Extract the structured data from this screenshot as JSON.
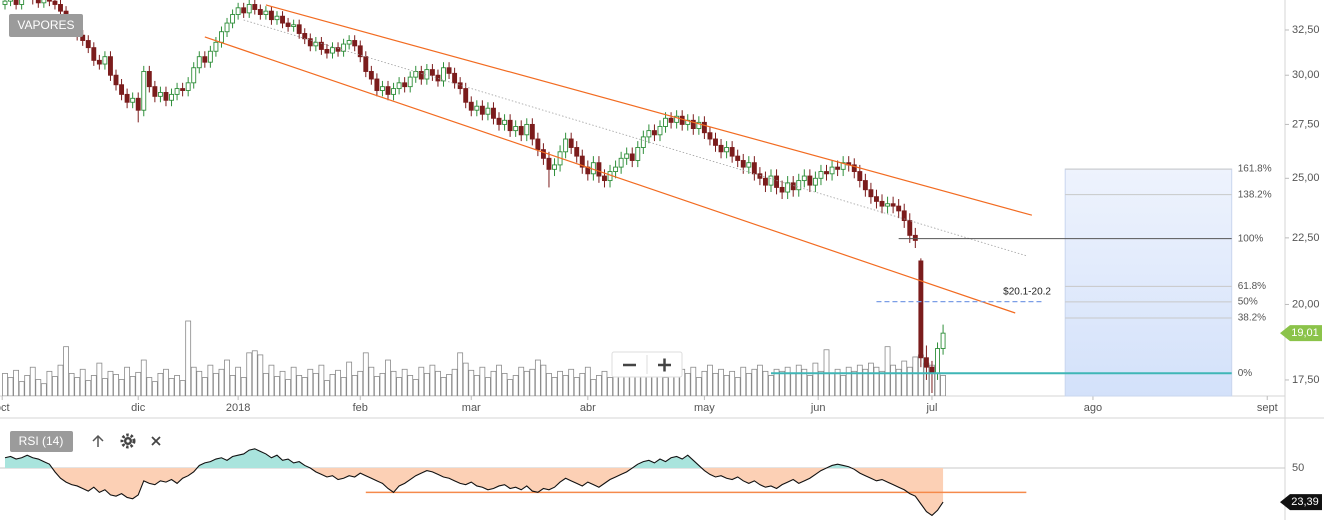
{
  "chart_data": [
    {
      "type": "candlestick",
      "title": "VAPORES",
      "scale": "log",
      "open": [
        34.0,
        34.2,
        34.5,
        34.0,
        34.6,
        34.8,
        34.3,
        34.1,
        34.5,
        34.2,
        34.0,
        33.6,
        33.0,
        32.8,
        32.2,
        31.9,
        31.5,
        30.8,
        30.6,
        31.0,
        30.0,
        29.5,
        29.0,
        28.6,
        28.8,
        28.2,
        30.2,
        29.4,
        28.9,
        29.1,
        28.7,
        29.0,
        29.3,
        29.2,
        29.6,
        30.4,
        31.0,
        30.7,
        31.3,
        31.8,
        32.4,
        32.9,
        33.4,
        33.8,
        33.5,
        34.0,
        33.7,
        33.4,
        33.6,
        33.1,
        33.3,
        32.9,
        32.7,
        32.8,
        32.3,
        32.0,
        31.6,
        31.8,
        31.4,
        31.2,
        31.5,
        31.3,
        31.7,
        31.9,
        31.6,
        31.0,
        30.2,
        29.8,
        29.2,
        29.4,
        29.0,
        29.3,
        29.6,
        29.4,
        29.9,
        30.2,
        29.8,
        30.3,
        30.0,
        29.7,
        30.4,
        30.1,
        29.6,
        29.3,
        28.6,
        28.2,
        28.4,
        28.0,
        28.3,
        27.8,
        27.5,
        27.7,
        27.2,
        27.4,
        27.0,
        27.5,
        26.8,
        26.3,
        25.9,
        25.4,
        25.6,
        26.2,
        26.8,
        26.4,
        26.0,
        25.5,
        25.2,
        25.7,
        25.1,
        24.9,
        25.3,
        25.5,
        25.9,
        26.1,
        25.8,
        26.4,
        26.9,
        27.2,
        27.0,
        27.4,
        27.8,
        27.6,
        27.9,
        27.5,
        27.7,
        27.3,
        27.6,
        27.1,
        26.8,
        26.5,
        26.2,
        26.4,
        26.0,
        25.8,
        25.5,
        25.7,
        25.2,
        25.0,
        24.7,
        25.1,
        24.6,
        24.4,
        24.8,
        24.5,
        24.9,
        25.1,
        24.7,
        25.0,
        25.3,
        25.2,
        25.5,
        25.4,
        25.7,
        25.6,
        25.3,
        24.9,
        24.5,
        24.2,
        24.0,
        23.8,
        23.9,
        23.8,
        23.6,
        23.2,
        22.6,
        21.6,
        18.2,
        17.9,
        17.7,
        18.5
      ],
      "high": [
        34.5,
        34.8,
        34.8,
        34.9,
        35.1,
        35.1,
        34.6,
        34.8,
        34.8,
        34.5,
        34.3,
        33.9,
        33.3,
        33.1,
        32.5,
        32.2,
        31.8,
        31.1,
        31.3,
        31.3,
        30.3,
        29.8,
        29.3,
        29.1,
        29.1,
        30.5,
        30.5,
        29.7,
        29.4,
        29.4,
        29.3,
        29.6,
        29.6,
        29.9,
        30.7,
        31.3,
        31.3,
        31.6,
        32.1,
        32.7,
        33.2,
        33.7,
        34.1,
        34.1,
        34.3,
        34.3,
        34.0,
        33.9,
        33.9,
        33.6,
        33.6,
        33.2,
        33.1,
        33.1,
        32.6,
        32.3,
        32.1,
        32.1,
        31.7,
        31.8,
        31.8,
        32.0,
        32.2,
        32.2,
        31.9,
        31.3,
        30.5,
        30.1,
        29.7,
        29.7,
        29.6,
        29.9,
        29.9,
        30.2,
        30.5,
        30.5,
        30.6,
        30.6,
        30.3,
        30.7,
        30.7,
        30.4,
        29.9,
        29.6,
        28.9,
        28.7,
        28.7,
        28.6,
        28.6,
        28.1,
        28.0,
        28.0,
        27.7,
        27.7,
        27.8,
        27.8,
        27.1,
        26.6,
        26.2,
        25.9,
        26.5,
        27.1,
        27.1,
        26.7,
        26.3,
        25.8,
        26.0,
        26.0,
        25.4,
        25.6,
        25.8,
        26.2,
        26.4,
        26.4,
        26.7,
        27.2,
        27.5,
        27.5,
        27.7,
        28.1,
        28.1,
        28.2,
        28.2,
        28.0,
        28.0,
        27.9,
        27.9,
        27.4,
        27.1,
        26.8,
        26.7,
        26.7,
        26.3,
        26.1,
        26.0,
        26.0,
        25.5,
        25.3,
        25.4,
        25.4,
        24.9,
        25.1,
        25.1,
        25.2,
        25.4,
        25.4,
        25.3,
        25.6,
        25.6,
        25.8,
        25.8,
        26.0,
        26.0,
        25.9,
        25.6,
        25.2,
        24.8,
        24.5,
        24.3,
        24.2,
        24.2,
        24.1,
        23.9,
        23.5,
        22.9,
        21.7,
        18.6,
        18.1,
        18.7,
        19.3
      ],
      "low": [
        33.7,
        33.9,
        33.7,
        33.7,
        34.3,
        34.0,
        33.8,
        33.8,
        33.9,
        33.7,
        33.3,
        32.7,
        32.5,
        31.9,
        31.6,
        31.2,
        30.5,
        30.3,
        30.3,
        29.7,
        29.2,
        28.7,
        28.3,
        28.3,
        27.6,
        27.9,
        29.1,
        28.6,
        28.6,
        28.4,
        28.4,
        28.7,
        28.9,
        28.9,
        29.3,
        30.1,
        30.4,
        30.4,
        31.0,
        31.5,
        32.1,
        32.6,
        33.1,
        33.2,
        33.2,
        33.4,
        33.1,
        33.1,
        32.8,
        32.8,
        32.6,
        32.4,
        32.4,
        32.0,
        31.7,
        31.3,
        31.3,
        31.1,
        30.9,
        30.9,
        31.0,
        31.0,
        31.4,
        31.3,
        30.7,
        29.9,
        29.5,
        28.9,
        28.9,
        28.7,
        28.7,
        29.0,
        29.1,
        29.1,
        29.6,
        29.5,
        29.5,
        29.7,
        29.4,
        29.4,
        29.8,
        29.3,
        29.0,
        28.3,
        27.9,
        27.9,
        27.7,
        27.7,
        27.5,
        27.2,
        27.2,
        26.9,
        26.9,
        26.7,
        26.7,
        26.5,
        26.0,
        25.6,
        24.6,
        25.1,
        25.3,
        25.9,
        26.1,
        25.7,
        25.2,
        24.9,
        24.9,
        24.8,
        24.6,
        24.6,
        25.0,
        25.2,
        25.6,
        25.5,
        25.5,
        26.1,
        26.6,
        26.7,
        26.7,
        27.1,
        27.3,
        27.3,
        27.2,
        27.2,
        27.0,
        27.0,
        26.8,
        26.5,
        26.2,
        25.9,
        25.9,
        25.7,
        25.5,
        25.2,
        25.2,
        24.9,
        24.7,
        24.4,
        24.4,
        24.3,
        24.1,
        24.1,
        24.2,
        24.2,
        24.6,
        24.4,
        24.4,
        24.7,
        24.9,
        24.9,
        25.1,
        25.1,
        25.3,
        25.0,
        24.6,
        24.2,
        23.9,
        23.7,
        23.5,
        23.5,
        23.5,
        23.3,
        22.9,
        22.3,
        22.1,
        17.9,
        17.5,
        17.1,
        17.5,
        18.3
      ],
      "close": [
        34.2,
        34.5,
        34.0,
        34.6,
        34.8,
        34.3,
        34.1,
        34.5,
        34.2,
        34.0,
        33.6,
        33.0,
        32.8,
        32.2,
        31.9,
        31.5,
        30.8,
        30.6,
        31.0,
        30.0,
        29.5,
        29.0,
        28.6,
        28.8,
        28.2,
        30.2,
        29.4,
        28.9,
        29.1,
        28.7,
        29.0,
        29.3,
        29.2,
        29.6,
        30.4,
        31.0,
        30.7,
        31.3,
        31.8,
        32.4,
        32.9,
        33.4,
        33.8,
        33.5,
        34.0,
        33.7,
        33.4,
        33.6,
        33.1,
        33.3,
        32.9,
        32.7,
        32.8,
        32.3,
        32.0,
        31.6,
        31.8,
        31.4,
        31.2,
        31.5,
        31.3,
        31.7,
        31.9,
        31.6,
        31.0,
        30.2,
        29.8,
        29.2,
        29.4,
        29.0,
        29.3,
        29.6,
        29.4,
        29.9,
        30.2,
        29.8,
        30.3,
        30.0,
        29.7,
        30.4,
        30.1,
        29.6,
        29.3,
        28.6,
        28.2,
        28.4,
        28.0,
        28.3,
        27.8,
        27.5,
        27.7,
        27.2,
        27.4,
        27.0,
        27.5,
        26.8,
        26.3,
        25.9,
        25.4,
        25.6,
        26.2,
        26.8,
        26.4,
        26.0,
        25.5,
        25.2,
        25.7,
        25.1,
        24.9,
        25.3,
        25.5,
        25.9,
        26.1,
        25.8,
        26.4,
        26.9,
        27.2,
        27.0,
        27.4,
        27.8,
        27.6,
        27.9,
        27.5,
        27.7,
        27.3,
        27.6,
        27.1,
        26.8,
        26.5,
        26.2,
        26.4,
        26.0,
        25.8,
        25.5,
        25.7,
        25.2,
        25.0,
        24.7,
        25.1,
        24.6,
        24.4,
        24.8,
        24.5,
        24.9,
        25.1,
        24.7,
        25.0,
        25.3,
        25.2,
        25.5,
        25.4,
        25.7,
        25.6,
        25.3,
        24.9,
        24.5,
        24.2,
        24.0,
        23.8,
        23.9,
        23.8,
        23.6,
        23.2,
        22.6,
        22.4,
        18.2,
        17.9,
        17.7,
        18.5,
        19.01
      ],
      "up_color": "#2f8f3a",
      "down_color": "#7b1c1c",
      "volume": {
        "color": "#8a8a8a",
        "values": [
          22,
          18,
          25,
          14,
          20,
          28,
          16,
          12,
          24,
          19,
          30,
          48,
          22,
          18,
          26,
          15,
          20,
          32,
          17,
          24,
          21,
          16,
          28,
          19,
          23,
          35,
          18,
          14,
          22,
          26,
          17,
          20,
          15,
          73,
          28,
          24,
          18,
          30,
          22,
          26,
          35,
          20,
          28,
          18,
          42,
          44,
          40,
          22,
          30,
          19,
          24,
          16,
          28,
          20,
          18,
          26,
          22,
          30,
          15,
          21,
          25,
          18,
          33,
          20,
          24,
          42,
          28,
          19,
          22,
          35,
          24,
          18,
          26,
          20,
          16,
          28,
          22,
          30,
          24,
          18,
          21,
          26,
          42,
          32,
          25,
          20,
          28,
          18,
          24,
          30,
          22,
          16,
          20,
          28,
          24,
          26,
          35,
          30,
          22,
          18,
          24,
          20,
          26,
          18,
          22,
          28,
          16,
          20,
          24,
          18,
          22,
          26,
          20,
          30,
          24,
          28,
          22,
          26,
          20,
          18,
          24,
          20,
          26,
          22,
          28,
          18,
          24,
          30,
          22,
          26,
          20,
          24,
          18,
          28,
          22,
          26,
          30,
          24,
          20,
          26,
          24,
          28,
          22,
          30,
          26,
          20,
          32,
          24,
          45,
          22,
          26,
          20,
          28,
          24,
          30,
          26,
          32,
          28,
          24,
          48,
          30,
          26,
          34,
          28,
          38,
          40,
          32,
          30,
          22,
          20
        ]
      },
      "xlim": [
        -0.9,
        230.6
      ],
      "xticks": [
        {
          "value": -0.5,
          "label": "oct"
        },
        {
          "value": 24,
          "label": "dic"
        },
        {
          "value": 42,
          "label": "2018"
        },
        {
          "value": 64,
          "label": "feb"
        },
        {
          "value": 84,
          "label": "mar"
        },
        {
          "value": 105,
          "label": "abr"
        },
        {
          "value": 126,
          "label": "may"
        },
        {
          "value": 146.5,
          "label": "jun"
        },
        {
          "value": 167,
          "label": "jul"
        },
        {
          "value": 196,
          "label": "ago"
        },
        {
          "value": 227.4,
          "label": "sept"
        }
      ],
      "ylim": [
        17.01,
        34.27
      ],
      "yticks": [
        {
          "value": 17.5,
          "label": "17,50"
        },
        {
          "value": 20,
          "label": "20,00"
        },
        {
          "value": 22.5,
          "label": "22,50"
        },
        {
          "value": 25,
          "label": "25,00"
        },
        {
          "value": 27.5,
          "label": "27,50"
        },
        {
          "value": 30,
          "label": "30,00"
        },
        {
          "value": 32.5,
          "label": "32,50"
        }
      ],
      "last_price": {
        "value": 19.01,
        "label": "19,01",
        "color": "#8bc34a"
      },
      "channel": {
        "color": "#f26b21",
        "lines": [
          {
            "x": [
              47,
              185
            ],
            "y": [
              33.97,
              23.42
            ]
          },
          {
            "x": [
              36,
              182
            ],
            "y": [
              32.1,
              19.7
            ]
          }
        ]
      },
      "midline": {
        "color": "#a0a0a0",
        "x": [
          43,
          184
        ],
        "y": [
          33.08,
          21.8
        ]
      },
      "fibonacci": {
        "zero": 17.71,
        "full": 22.47,
        "x": [
          191,
          221
        ],
        "anchor_x": [
          138,
          161
        ],
        "zero_color": "#3fb6b6",
        "full_color": "#555555",
        "levels": [
          {
            "value": 161.8,
            "label": "161.8%"
          },
          {
            "value": 138.2,
            "label": "138.2%"
          },
          {
            "value": 100,
            "label": "100%"
          },
          {
            "value": 61.8,
            "label": "61.8%"
          },
          {
            "value": 50,
            "label": "50%"
          },
          {
            "value": 38.2,
            "label": "38.2%"
          },
          {
            "value": 0,
            "label": "0%"
          }
        ]
      },
      "annotation": {
        "text": "$20.1-20.2",
        "price": 20.1,
        "x": [
          157,
          187
        ],
        "color": "#7b9ee6"
      }
    },
    {
      "type": "rsi",
      "title": "RSI (14)",
      "values": [
        58,
        59,
        57,
        58,
        60,
        58,
        57,
        55,
        53,
        47,
        42,
        39,
        37,
        36,
        34,
        32,
        35,
        31,
        33,
        29,
        28,
        30,
        27,
        26,
        29,
        40,
        38,
        37,
        40,
        39,
        41,
        38,
        42,
        44,
        47,
        52,
        54,
        55,
        57,
        58,
        56,
        59,
        60,
        61,
        64,
        65,
        63,
        61,
        58,
        60,
        56,
        57,
        54,
        55,
        52,
        50,
        47,
        45,
        43,
        44,
        41,
        42,
        44,
        43,
        46,
        44,
        42,
        40,
        38,
        34,
        31,
        36,
        38,
        41,
        44,
        46,
        48,
        47,
        45,
        43,
        42,
        40,
        38,
        37,
        39,
        36,
        35,
        33,
        34,
        36,
        37,
        34,
        35,
        33,
        36,
        32,
        31,
        34,
        33,
        35,
        39,
        42,
        40,
        38,
        36,
        39,
        37,
        35,
        38,
        41,
        43,
        45,
        47,
        50,
        53,
        55,
        56,
        54,
        57,
        55,
        58,
        59,
        57,
        60,
        56,
        52,
        48,
        45,
        43,
        44,
        42,
        41,
        43,
        40,
        38,
        40,
        37,
        35,
        36,
        34,
        37,
        39,
        41,
        38,
        40,
        42,
        45,
        48,
        50,
        52,
        53,
        52,
        51,
        49,
        46,
        44,
        42,
        40,
        41,
        39,
        37,
        35,
        33,
        30,
        28,
        22,
        16,
        13,
        17,
        23.39
      ],
      "xlim": [
        -0.9,
        230.6
      ],
      "ylim": [
        9.4,
        87.5
      ],
      "yticks": [
        50
      ],
      "above_color": "#a9e4dd",
      "below_color": "#fcd0b5",
      "last_value": {
        "value": 23.39,
        "label": "23,39"
      },
      "level": {
        "value": 31,
        "x": [
          65,
          184
        ],
        "color": "#f58a4b"
      }
    }
  ]
}
